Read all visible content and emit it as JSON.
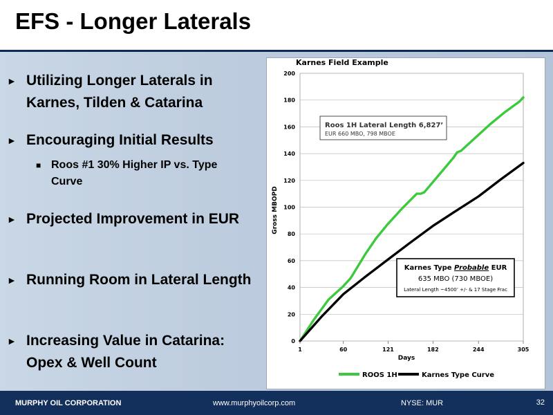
{
  "slide": {
    "title": "EFS - Longer Laterals"
  },
  "bullets": [
    {
      "text": "Utilizing Longer Laterals in Karnes, Tilden & Catarina"
    },
    {
      "text": "Encouraging Initial Results"
    },
    {
      "text": "Projected Improvement in EUR"
    },
    {
      "text": "Running Room in Lateral Length"
    },
    {
      "text": "Increasing Value in Catarina: Opex & Well Count"
    }
  ],
  "sub_bullet": {
    "text": "Roos #1 30% Higher IP vs. Type Curve"
  },
  "footer": {
    "company": "MURPHY OIL CORPORATION",
    "url": "www.murphyoilcorp.com",
    "ticker": "NYSE: MUR",
    "page": "32"
  },
  "colors": {
    "roos": "#3dc93d",
    "karnes": "#000000",
    "footer_bg": "#13305c"
  },
  "chart_data": {
    "type": "line",
    "title": "Karnes Field Example",
    "xlabel": "Days",
    "ylabel": "Gross MBOPD",
    "xlim": [
      1,
      305
    ],
    "ylim": [
      0,
      200
    ],
    "x_ticks": [
      1,
      60,
      121,
      182,
      244,
      305
    ],
    "y_ticks": [
      0,
      20,
      40,
      60,
      80,
      100,
      120,
      140,
      160,
      180,
      200
    ],
    "grid": true,
    "legend_position": "bottom",
    "series": [
      {
        "name": "ROOS 1H",
        "x": [
          1,
          20,
          40,
          60,
          70,
          90,
          105,
          120,
          140,
          160,
          165,
          170,
          190,
          210,
          215,
          220,
          240,
          260,
          280,
          300,
          305
        ],
        "y": [
          0,
          16,
          31,
          41,
          47,
          65,
          77,
          87,
          99,
          110,
          110,
          111,
          124,
          137,
          141,
          142,
          152,
          162,
          171,
          179,
          182
        ]
      },
      {
        "name": "Karnes Type Curve",
        "x": [
          1,
          30,
          60,
          90,
          121,
          150,
          182,
          210,
          244,
          275,
          305
        ],
        "y": [
          0,
          18,
          35,
          48,
          61,
          73,
          86,
          96,
          108,
          121,
          133
        ]
      }
    ],
    "annotations": [
      {
        "line1": "Roos 1H  Lateral Length 6,827’",
        "line2": "EUR 660 MBO, 798 MBOE"
      },
      {
        "line1_prefix": "Karnes Type ",
        "line1_emph": "Probable",
        "line1_suffix": " EUR",
        "line2": "635 MBO (730 MBOE)",
        "line3": "Lateral Length ~4500’ +/-    & 17 Stage Frac"
      }
    ]
  }
}
